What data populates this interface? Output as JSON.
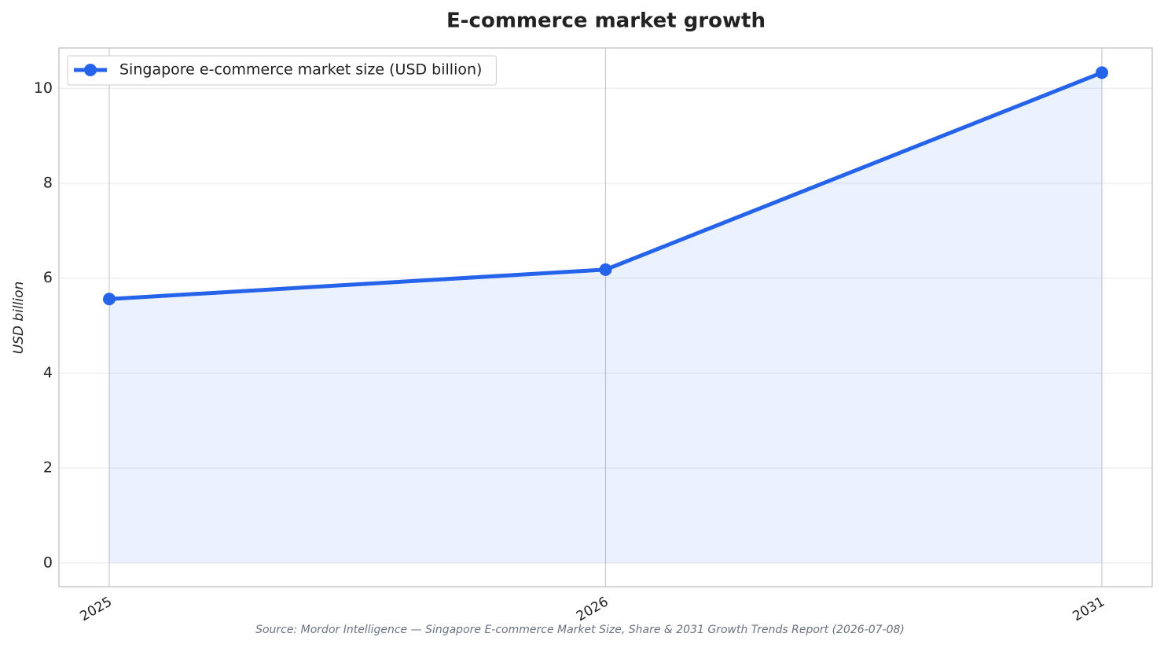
{
  "chart_data": {
    "type": "line",
    "title": "E-commerce market growth",
    "y_label": "USD billion",
    "source": "Source: Mordor Intelligence — Singapore E-commerce Market Size, Share & 2031 Growth Trends Report (2026-07-08)",
    "categories": [
      "2025",
      "2026",
      "2031"
    ],
    "series": [
      {
        "name": "Singapore e-commerce market size (USD billion)",
        "color": "#2563eb",
        "values": [
          5.56,
          6.18,
          10.33
        ]
      }
    ],
    "ylim": [
      -0.5,
      10.85
    ],
    "yticks": [
      0,
      2,
      4,
      6,
      8,
      10
    ],
    "grid": true,
    "area": true,
    "legend": "upper-left"
  }
}
